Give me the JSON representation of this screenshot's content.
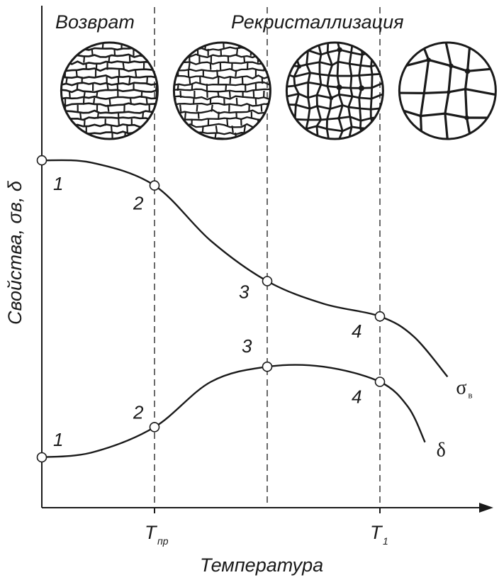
{
  "chart_data": {
    "type": "line",
    "ylabel": "Свойства, σв, δ",
    "xlabel": "Температура",
    "stage_labels": [
      "Возврат",
      "Рекристаллизация"
    ],
    "ticks": [
      {
        "label": "T",
        "sub": "пр",
        "x": 2
      },
      {
        "label": "T",
        "sub": "1",
        "x": 4
      }
    ],
    "marker_positions": [
      1,
      2,
      3,
      4
    ],
    "xlim": [
      1,
      5.5
    ],
    "ylim": [
      0,
      10
    ],
    "microstructures": [
      {
        "stage": "deformed",
        "x": 1.6
      },
      {
        "stage": "recovery",
        "x": 2.6
      },
      {
        "stage": "primary-recrystallization",
        "x": 3.6
      },
      {
        "stage": "grain-growth",
        "x": 4.6
      }
    ],
    "series": [
      {
        "name": "σв",
        "name_sub": "в",
        "symbol": "σ",
        "values": [
          {
            "x": 1,
            "y": 6.9,
            "label": "1"
          },
          {
            "x": 2,
            "y": 6.4,
            "label": "2"
          },
          {
            "x": 3,
            "y": 4.5,
            "label": "3"
          },
          {
            "x": 4,
            "y": 3.8,
            "label": "4"
          }
        ],
        "tail": [
          {
            "x": 4.6,
            "y": 2.6
          }
        ]
      },
      {
        "name": "δ",
        "symbol": "δ",
        "values": [
          {
            "x": 1,
            "y": 1.0,
            "label": "1"
          },
          {
            "x": 2,
            "y": 1.6,
            "label": "2"
          },
          {
            "x": 3,
            "y": 2.8,
            "label": "3"
          },
          {
            "x": 4,
            "y": 2.5,
            "label": "4"
          }
        ],
        "tail": [
          {
            "x": 4.4,
            "y": 1.3
          }
        ]
      }
    ]
  }
}
